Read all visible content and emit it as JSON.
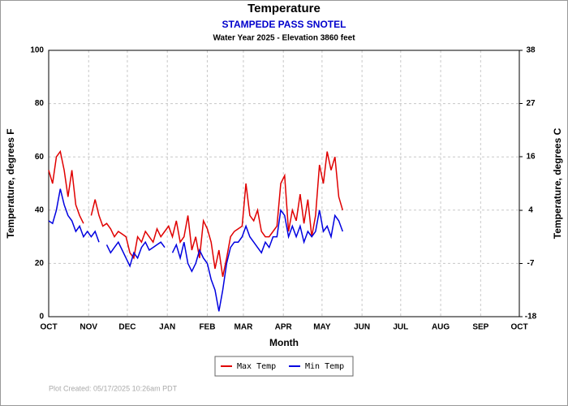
{
  "chart_data": {
    "type": "line",
    "title": "Temperature",
    "subtitle": "STAMPEDE PASS SNOTEL",
    "subtitle2": "Water Year 2025 -  Elevation 3860 feet",
    "xlabel": "Month",
    "ylabel": "Temperature, degrees F",
    "y2label": "Temperature, degrees C",
    "footer": "Plot Created: 05/17/2025 10:26am PDT",
    "grid": true,
    "legend": "bottom",
    "xlim": [
      0,
      365
    ],
    "xticks": [
      {
        "value": 0,
        "label": "OCT"
      },
      {
        "value": 31,
        "label": "NOV"
      },
      {
        "value": 61,
        "label": "DEC"
      },
      {
        "value": 92,
        "label": "JAN"
      },
      {
        "value": 123,
        "label": "FEB"
      },
      {
        "value": 151,
        "label": "MAR"
      },
      {
        "value": 182,
        "label": "APR"
      },
      {
        "value": 212,
        "label": "MAY"
      },
      {
        "value": 243,
        "label": "JUN"
      },
      {
        "value": 273,
        "label": "JUL"
      },
      {
        "value": 304,
        "label": "AUG"
      },
      {
        "value": 335,
        "label": "SEP"
      },
      {
        "value": 365,
        "label": "OCT"
      }
    ],
    "ylim": [
      0,
      100
    ],
    "yticks": [
      0,
      20,
      40,
      60,
      80,
      100
    ],
    "y2lim": [
      -17.8,
      37.8
    ],
    "y2ticks": [
      {
        "value": -17.8,
        "label": "-18"
      },
      {
        "value": -6.7,
        "label": "-7"
      },
      {
        "value": 4.4,
        "label": "4"
      },
      {
        "value": 15.6,
        "label": "16"
      },
      {
        "value": 26.7,
        "label": "27"
      },
      {
        "value": 37.8,
        "label": "38"
      }
    ],
    "x": [
      0,
      3,
      6,
      9,
      12,
      15,
      18,
      21,
      24,
      27,
      30,
      33,
      36,
      39,
      42,
      45,
      48,
      51,
      54,
      57,
      60,
      63,
      66,
      69,
      72,
      75,
      78,
      81,
      84,
      87,
      90,
      93,
      96,
      99,
      102,
      105,
      108,
      111,
      114,
      117,
      120,
      123,
      126,
      129,
      132,
      135,
      138,
      141,
      144,
      147,
      150,
      153,
      156,
      159,
      162,
      165,
      168,
      171,
      174,
      177,
      180,
      183,
      186,
      189,
      192,
      195,
      198,
      201,
      204,
      207,
      210,
      213,
      216,
      219,
      222,
      225,
      228
    ],
    "series": [
      {
        "name": "Max Temp",
        "color": "#e00000",
        "values": [
          55,
          50,
          60,
          62,
          55,
          45,
          55,
          42,
          38,
          35,
          null,
          38,
          44,
          38,
          34,
          35,
          33,
          30,
          32,
          31,
          30,
          24,
          22,
          30,
          28,
          32,
          30,
          28,
          33,
          30,
          32,
          34,
          30,
          36,
          28,
          30,
          38,
          25,
          30,
          22,
          36,
          33,
          28,
          18,
          25,
          15,
          22,
          30,
          32,
          33,
          34,
          50,
          38,
          36,
          40,
          32,
          30,
          30,
          32,
          34,
          50,
          53,
          32,
          40,
          36,
          46,
          35,
          44,
          30,
          38,
          57,
          50,
          62,
          55,
          60,
          45,
          40
        ]
      },
      {
        "name": "Min Temp",
        "color": "#0000e0",
        "values": [
          36,
          35,
          40,
          48,
          42,
          38,
          36,
          32,
          34,
          30,
          32,
          30,
          32,
          28,
          null,
          27,
          24,
          26,
          28,
          25,
          22,
          19,
          24,
          22,
          26,
          28,
          25,
          26,
          27,
          28,
          26,
          null,
          24,
          27,
          22,
          28,
          20,
          17,
          20,
          25,
          22,
          20,
          14,
          10,
          2,
          10,
          20,
          26,
          28,
          28,
          30,
          34,
          30,
          28,
          26,
          24,
          28,
          26,
          30,
          30,
          40,
          38,
          30,
          34,
          30,
          34,
          28,
          32,
          30,
          32,
          40,
          32,
          34,
          30,
          38,
          36,
          32
        ]
      }
    ]
  }
}
